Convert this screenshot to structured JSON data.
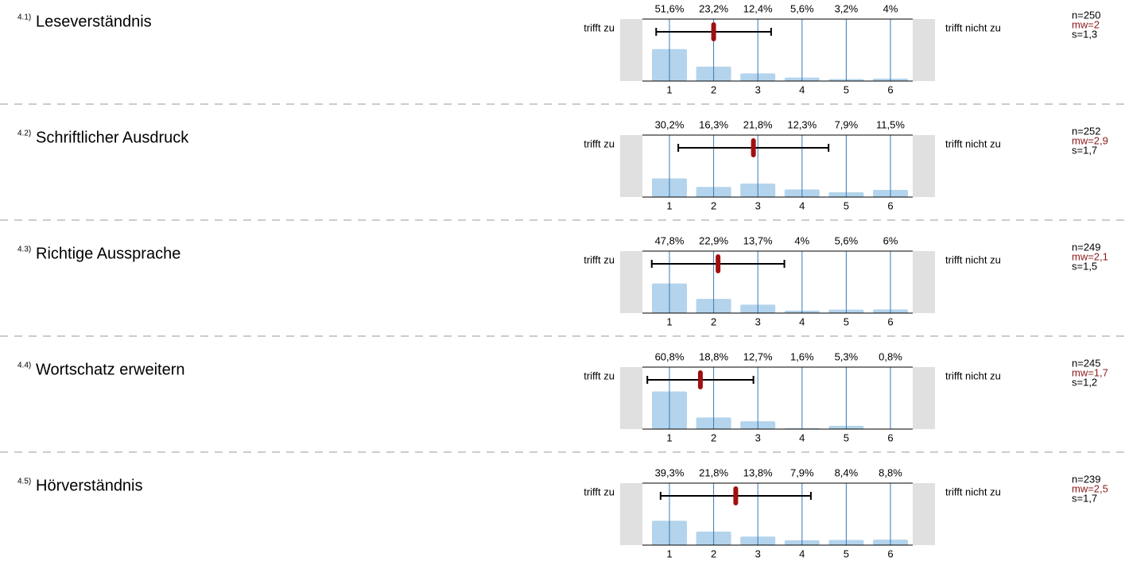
{
  "chart_data": [
    {
      "type": "bar",
      "number": "4.1)",
      "title": "Leseverständnis",
      "left_label": "trifft zu",
      "right_label": "trifft nicht zu",
      "categories": [
        1,
        2,
        3,
        4,
        5,
        6
      ],
      "values": [
        51.6,
        23.2,
        12.4,
        5.6,
        3.2,
        4
      ],
      "value_labels": [
        "51,6%",
        "23,2%",
        "12,4%",
        "5,6%",
        "3,2%",
        "4%"
      ],
      "ylim": [
        0,
        100
      ],
      "color": "#b3d4ec",
      "n": {
        "value": 250,
        "label": "n=250"
      },
      "mean": {
        "value": 2,
        "label": "mw=2"
      },
      "sd": {
        "value": 1.3,
        "label": "s=1,3"
      }
    },
    {
      "type": "bar",
      "number": "4.2)",
      "title": "Schriftlicher Ausdruck",
      "left_label": "trifft zu",
      "right_label": "trifft nicht zu",
      "categories": [
        1,
        2,
        3,
        4,
        5,
        6
      ],
      "values": [
        30.2,
        16.3,
        21.8,
        12.3,
        7.9,
        11.5
      ],
      "value_labels": [
        "30,2%",
        "16,3%",
        "21,8%",
        "12,3%",
        "7,9%",
        "11,5%"
      ],
      "ylim": [
        0,
        100
      ],
      "color": "#b3d4ec",
      "n": {
        "value": 252,
        "label": "n=252"
      },
      "mean": {
        "value": 2.9,
        "label": "mw=2,9"
      },
      "sd": {
        "value": 1.7,
        "label": "s=1,7"
      }
    },
    {
      "type": "bar",
      "number": "4.3)",
      "title": "Richtige Aussprache",
      "left_label": "trifft zu",
      "right_label": "trifft nicht zu",
      "categories": [
        1,
        2,
        3,
        4,
        5,
        6
      ],
      "values": [
        47.8,
        22.9,
        13.7,
        4,
        5.6,
        6
      ],
      "value_labels": [
        "47,8%",
        "22,9%",
        "13,7%",
        "4%",
        "5,6%",
        "6%"
      ],
      "ylim": [
        0,
        100
      ],
      "color": "#b3d4ec",
      "n": {
        "value": 249,
        "label": "n=249"
      },
      "mean": {
        "value": 2.1,
        "label": "mw=2,1"
      },
      "sd": {
        "value": 1.5,
        "label": "s=1,5"
      }
    },
    {
      "type": "bar",
      "number": "4.4)",
      "title": "Wortschatz erweitern",
      "left_label": "trifft zu",
      "right_label": "trifft nicht zu",
      "categories": [
        1,
        2,
        3,
        4,
        5,
        6
      ],
      "values": [
        60.8,
        18.8,
        12.7,
        1.6,
        5.3,
        0.8
      ],
      "value_labels": [
        "60,8%",
        "18,8%",
        "12,7%",
        "1,6%",
        "5,3%",
        "0,8%"
      ],
      "ylim": [
        0,
        100
      ],
      "color": "#b3d4ec",
      "n": {
        "value": 245,
        "label": "n=245"
      },
      "mean": {
        "value": 1.7,
        "label": "mw=1,7"
      },
      "sd": {
        "value": 1.2,
        "label": "s=1,2"
      }
    },
    {
      "type": "bar",
      "number": "4.5)",
      "title": "Hörverständnis",
      "left_label": "trifft zu",
      "right_label": "trifft nicht zu",
      "categories": [
        1,
        2,
        3,
        4,
        5,
        6
      ],
      "values": [
        39.3,
        21.8,
        13.8,
        7.9,
        8.4,
        8.8
      ],
      "value_labels": [
        "39,3%",
        "21,8%",
        "13,8%",
        "7,9%",
        "8,4%",
        "8,8%"
      ],
      "ylim": [
        0,
        100
      ],
      "color": "#b3d4ec",
      "n": {
        "value": 239,
        "label": "n=239"
      },
      "mean": {
        "value": 2.5,
        "label": "mw=2,5"
      },
      "sd": {
        "value": 1.7,
        "label": "s=1,7"
      }
    }
  ]
}
